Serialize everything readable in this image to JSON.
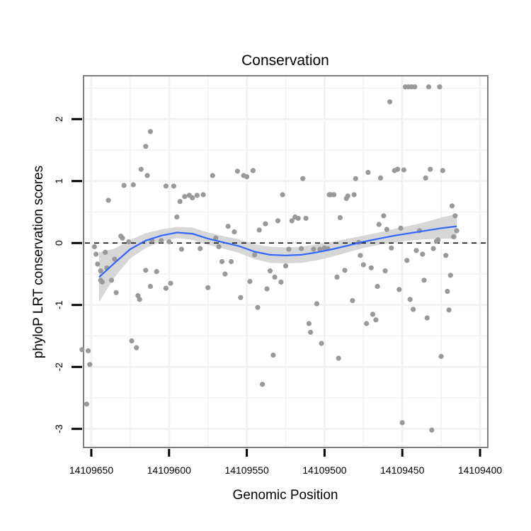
{
  "chart_data": {
    "type": "scatter",
    "title": "Conservation",
    "xlabel": "Genomic Position",
    "ylabel": "phyloP LRT conservation scores",
    "x_reversed": true,
    "xlim": [
      14109655,
      14109395
    ],
    "ylim": [
      -3.3,
      2.7
    ],
    "x_ticks": [
      14109650,
      14109600,
      14109550,
      14109500,
      14109450,
      14109400
    ],
    "x_tick_labels": [
      "14109650",
      "14109600",
      "14109550",
      "14109500",
      "14109450",
      "14109400"
    ],
    "y_ticks": [
      -3,
      -2,
      -1,
      0,
      1,
      2
    ],
    "y_tick_labels": [
      "-3",
      "-2",
      "-1",
      "0",
      "1",
      "2"
    ],
    "x_minor_ticks": [
      14109625,
      14109575,
      14109525,
      14109475,
      14109425
    ],
    "y_minor_ticks": [
      -2.5,
      -1.5,
      -0.5,
      0.5,
      1.5,
      2.5
    ],
    "reference_line": {
      "y": 0,
      "style": "dashed",
      "color": "#000000"
    },
    "colors": {
      "points": "#999999",
      "smooth_line": "#3366FF",
      "ribbon": "#D3D3D3",
      "panel_border": "#7F7F7F",
      "grid": "#F2F2F2"
    },
    "series": [
      {
        "name": "scores",
        "points": [
          [
            14109648,
            -0.06
          ],
          [
            14109647,
            -0.18
          ],
          [
            14109646,
            -0.34
          ],
          [
            14109644,
            -0.6
          ],
          [
            14109643,
            -0.63
          ],
          [
            14109644,
            -0.45
          ],
          [
            14109641,
            -0.15
          ],
          [
            14109640,
            -0.4
          ],
          [
            14109639,
            0.69
          ],
          [
            14109637,
            -0.6
          ],
          [
            14109635,
            -0.26
          ],
          [
            14109634,
            -0.8
          ],
          [
            14109631,
            0.11
          ],
          [
            14109630,
            0.08
          ],
          [
            14109629,
            0.93
          ],
          [
            14109626,
            0.02
          ],
          [
            14109623,
            0.94
          ],
          [
            14109620,
            -0.85
          ],
          [
            14109619,
            -0.91
          ],
          [
            14109618,
            1.19
          ],
          [
            14109615,
            -0.44
          ],
          [
            14109614,
            1.09
          ],
          [
            14109612,
            -0.7
          ],
          [
            14109611,
            0.04
          ],
          [
            14109608,
            -0.46
          ],
          [
            14109605,
            0.04
          ],
          [
            14109602,
            0.92
          ],
          [
            14109602,
            -0.73
          ],
          [
            14109600,
            0.02
          ],
          [
            14109599,
            -0.65
          ],
          [
            14109597,
            0.92
          ],
          [
            14109595,
            0.42
          ],
          [
            14109593,
            0.67
          ],
          [
            14109592,
            -0.1
          ],
          [
            14109590,
            0.75
          ],
          [
            14109587,
            0.77
          ],
          [
            14109585,
            0.73
          ],
          [
            14109582,
            0.77
          ],
          [
            14109580,
            -0.09
          ],
          [
            14109578,
            0.78
          ],
          [
            14109575,
            -0.72
          ],
          [
            14109572,
            1.09
          ],
          [
            14109570,
            0.08
          ],
          [
            14109568,
            -0.06
          ],
          [
            14109566,
            -0.3
          ],
          [
            14109564,
            -0.5
          ],
          [
            14109562,
            0.27
          ],
          [
            14109560,
            -0.3
          ],
          [
            14109558,
            0.18
          ],
          [
            14109556,
            1.16
          ],
          [
            14109554,
            -0.88
          ],
          [
            14109552,
            1.09
          ],
          [
            14109550,
            1.07
          ],
          [
            14109548,
            -0.62
          ],
          [
            14109546,
            1.17
          ],
          [
            14109545,
            -0.19
          ],
          [
            14109543,
            -1.04
          ],
          [
            14109542,
            0.21
          ],
          [
            14109540,
            -2.28
          ],
          [
            14109538,
            0.31
          ],
          [
            14109537,
            -0.74
          ],
          [
            14109535,
            -0.45
          ],
          [
            14109533,
            -1.81
          ],
          [
            14109532,
            -0.55
          ],
          [
            14109530,
            0.36
          ],
          [
            14109528,
            -0.63
          ],
          [
            14109527,
            0.78
          ],
          [
            14109525,
            -0.37
          ],
          [
            14109523,
            -0.1
          ],
          [
            14109521,
            0.36
          ],
          [
            14109519,
            0.42
          ],
          [
            14109517,
            0.4
          ],
          [
            14109515,
            -0.09
          ],
          [
            14109514,
            1.04
          ],
          [
            14109512,
            0.4
          ],
          [
            14109510,
            -1.3
          ],
          [
            14109509,
            -1.44
          ],
          [
            14109507,
            -0.1
          ],
          [
            14109505,
            -0.98
          ],
          [
            14109503,
            -0.1
          ],
          [
            14109502,
            -1.62
          ],
          [
            14109500,
            -0.08
          ],
          [
            14109498,
            -0.09
          ],
          [
            14109497,
            0.78
          ],
          [
            14109496,
            0.78
          ],
          [
            14109494,
            0.78
          ],
          [
            14109492,
            -0.55
          ],
          [
            14109491,
            -1.86
          ],
          [
            14109490,
            0.41
          ],
          [
            14109487,
            -0.44
          ],
          [
            14109486,
            0.72
          ],
          [
            14109485,
            0.76
          ],
          [
            14109482,
            -0.93
          ],
          [
            14109481,
            0.78
          ],
          [
            14109480,
            1.04
          ],
          [
            14109478,
            0.01
          ],
          [
            14109477,
            -0.2
          ],
          [
            14109475,
            -0.35
          ],
          [
            14109473,
            -1.3
          ],
          [
            14109472,
            1.14
          ],
          [
            14109470,
            -0.4
          ],
          [
            14109469,
            -1.15
          ],
          [
            14109467,
            -1.24
          ],
          [
            14109466,
            -0.7
          ],
          [
            14109465,
            0.3
          ],
          [
            14109464,
            1.05
          ],
          [
            14109462,
            0.44
          ],
          [
            14109461,
            -0.45
          ],
          [
            14109460,
            0.22
          ],
          [
            14109458,
            2.28
          ],
          [
            14109457,
            -0.08
          ],
          [
            14109455,
            1.17
          ],
          [
            14109453,
            1.19
          ],
          [
            14109452,
            -0.75
          ],
          [
            14109451,
            0.24
          ],
          [
            14109450,
            -2.9
          ],
          [
            14109449,
            1.18
          ],
          [
            14109448,
            2.52
          ],
          [
            14109447,
            -0.28
          ],
          [
            14109446,
            2.52
          ],
          [
            14109445,
            -0.91
          ],
          [
            14109444,
            2.52
          ],
          [
            14109443,
            -1.07
          ],
          [
            14109442,
            2.52
          ],
          [
            14109441,
            -0.12
          ],
          [
            14109439,
            0.2
          ],
          [
            14109437,
            -0.18
          ],
          [
            14109436,
            -0.6
          ],
          [
            14109435,
            1.05
          ],
          [
            14109434,
            -1.21
          ],
          [
            14109433,
            2.52
          ],
          [
            14109432,
            1.19
          ],
          [
            14109431,
            -3.02
          ],
          [
            14109430,
            -0.09
          ],
          [
            14109428,
            0.03
          ],
          [
            14109427,
            0.05
          ],
          [
            14109426,
            2.52
          ],
          [
            14109425,
            -1.83
          ],
          [
            14109424,
            1.17
          ],
          [
            14109422,
            -0.2
          ],
          [
            14109421,
            -0.78
          ],
          [
            14109420,
            -1.08
          ],
          [
            14109419,
            -0.52
          ],
          [
            14109418,
            0.6
          ],
          [
            14109417,
            0.1
          ],
          [
            14109416,
            0.44
          ],
          [
            14109415,
            0.2
          ],
          [
            14109656,
            -1.72
          ],
          [
            14109653,
            -2.6
          ],
          [
            14109651,
            -1.96
          ],
          [
            14109652,
            -1.74
          ],
          [
            14109624,
            -1.58
          ],
          [
            14109621,
            -1.69
          ],
          [
            14109615,
            1.56
          ],
          [
            14109612,
            1.8
          ]
        ]
      },
      {
        "name": "loess",
        "x": [
          14109645,
          14109635,
          14109625,
          14109615,
          14109605,
          14109595,
          14109585,
          14109575,
          14109565,
          14109555,
          14109545,
          14109535,
          14109525,
          14109515,
          14109505,
          14109495,
          14109485,
          14109475,
          14109465,
          14109455,
          14109445,
          14109435,
          14109425,
          14109415
        ],
        "values": [
          -0.55,
          -0.32,
          -0.1,
          0.04,
          0.12,
          0.17,
          0.15,
          0.07,
          0.01,
          -0.05,
          -0.14,
          -0.19,
          -0.2,
          -0.19,
          -0.15,
          -0.1,
          -0.04,
          0.02,
          0.07,
          0.12,
          0.16,
          0.2,
          0.24,
          0.27
        ],
        "lower": [
          -0.95,
          -0.55,
          -0.25,
          -0.08,
          0.02,
          0.08,
          0.05,
          -0.03,
          -0.09,
          -0.16,
          -0.26,
          -0.32,
          -0.33,
          -0.32,
          -0.28,
          -0.22,
          -0.15,
          -0.08,
          -0.03,
          0.01,
          0.04,
          0.06,
          0.07,
          0.07
        ],
        "upper": [
          -0.15,
          -0.09,
          0.05,
          0.16,
          0.22,
          0.26,
          0.25,
          0.17,
          0.11,
          0.06,
          -0.02,
          -0.06,
          -0.07,
          -0.06,
          -0.02,
          0.02,
          0.07,
          0.12,
          0.17,
          0.23,
          0.28,
          0.34,
          0.41,
          0.47
        ]
      }
    ]
  }
}
